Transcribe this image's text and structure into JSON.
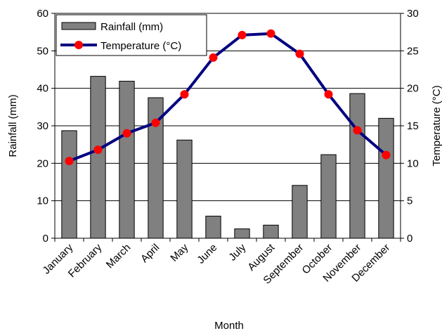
{
  "chart_data": {
    "type": "bar+line",
    "categories": [
      "January",
      "February",
      "March",
      "April",
      "May",
      "June",
      "July",
      "August",
      "September",
      "October",
      "November",
      "December"
    ],
    "series": [
      {
        "name": "Rainfall (mm)",
        "type": "bar",
        "axis": "left",
        "color": "#808080",
        "values": [
          28.7,
          43.2,
          41.9,
          37.5,
          26.2,
          5.9,
          2.5,
          3.5,
          14.1,
          22.3,
          38.6,
          32.0
        ]
      },
      {
        "name": "Temperature (°C)",
        "type": "line",
        "axis": "right",
        "color": "#000080",
        "marker_color": "#ff0000",
        "values": [
          10.3,
          11.8,
          14.0,
          15.4,
          19.2,
          24.1,
          27.1,
          27.3,
          24.6,
          19.2,
          14.4,
          11.1
        ]
      }
    ],
    "xlabel": "Month",
    "ylabel_left": "Rainfall (mm)",
    "ylabel_right": "Temperature (°C)",
    "ylim_left": [
      0,
      60
    ],
    "ylim_right": [
      0,
      30
    ],
    "yticks_left": [
      "0",
      "10",
      "20",
      "30",
      "40",
      "50",
      "60"
    ],
    "yticks_right": [
      "0",
      "5",
      "10",
      "15",
      "20",
      "25",
      "30"
    ],
    "grid": true,
    "legend_position": "top-left"
  }
}
